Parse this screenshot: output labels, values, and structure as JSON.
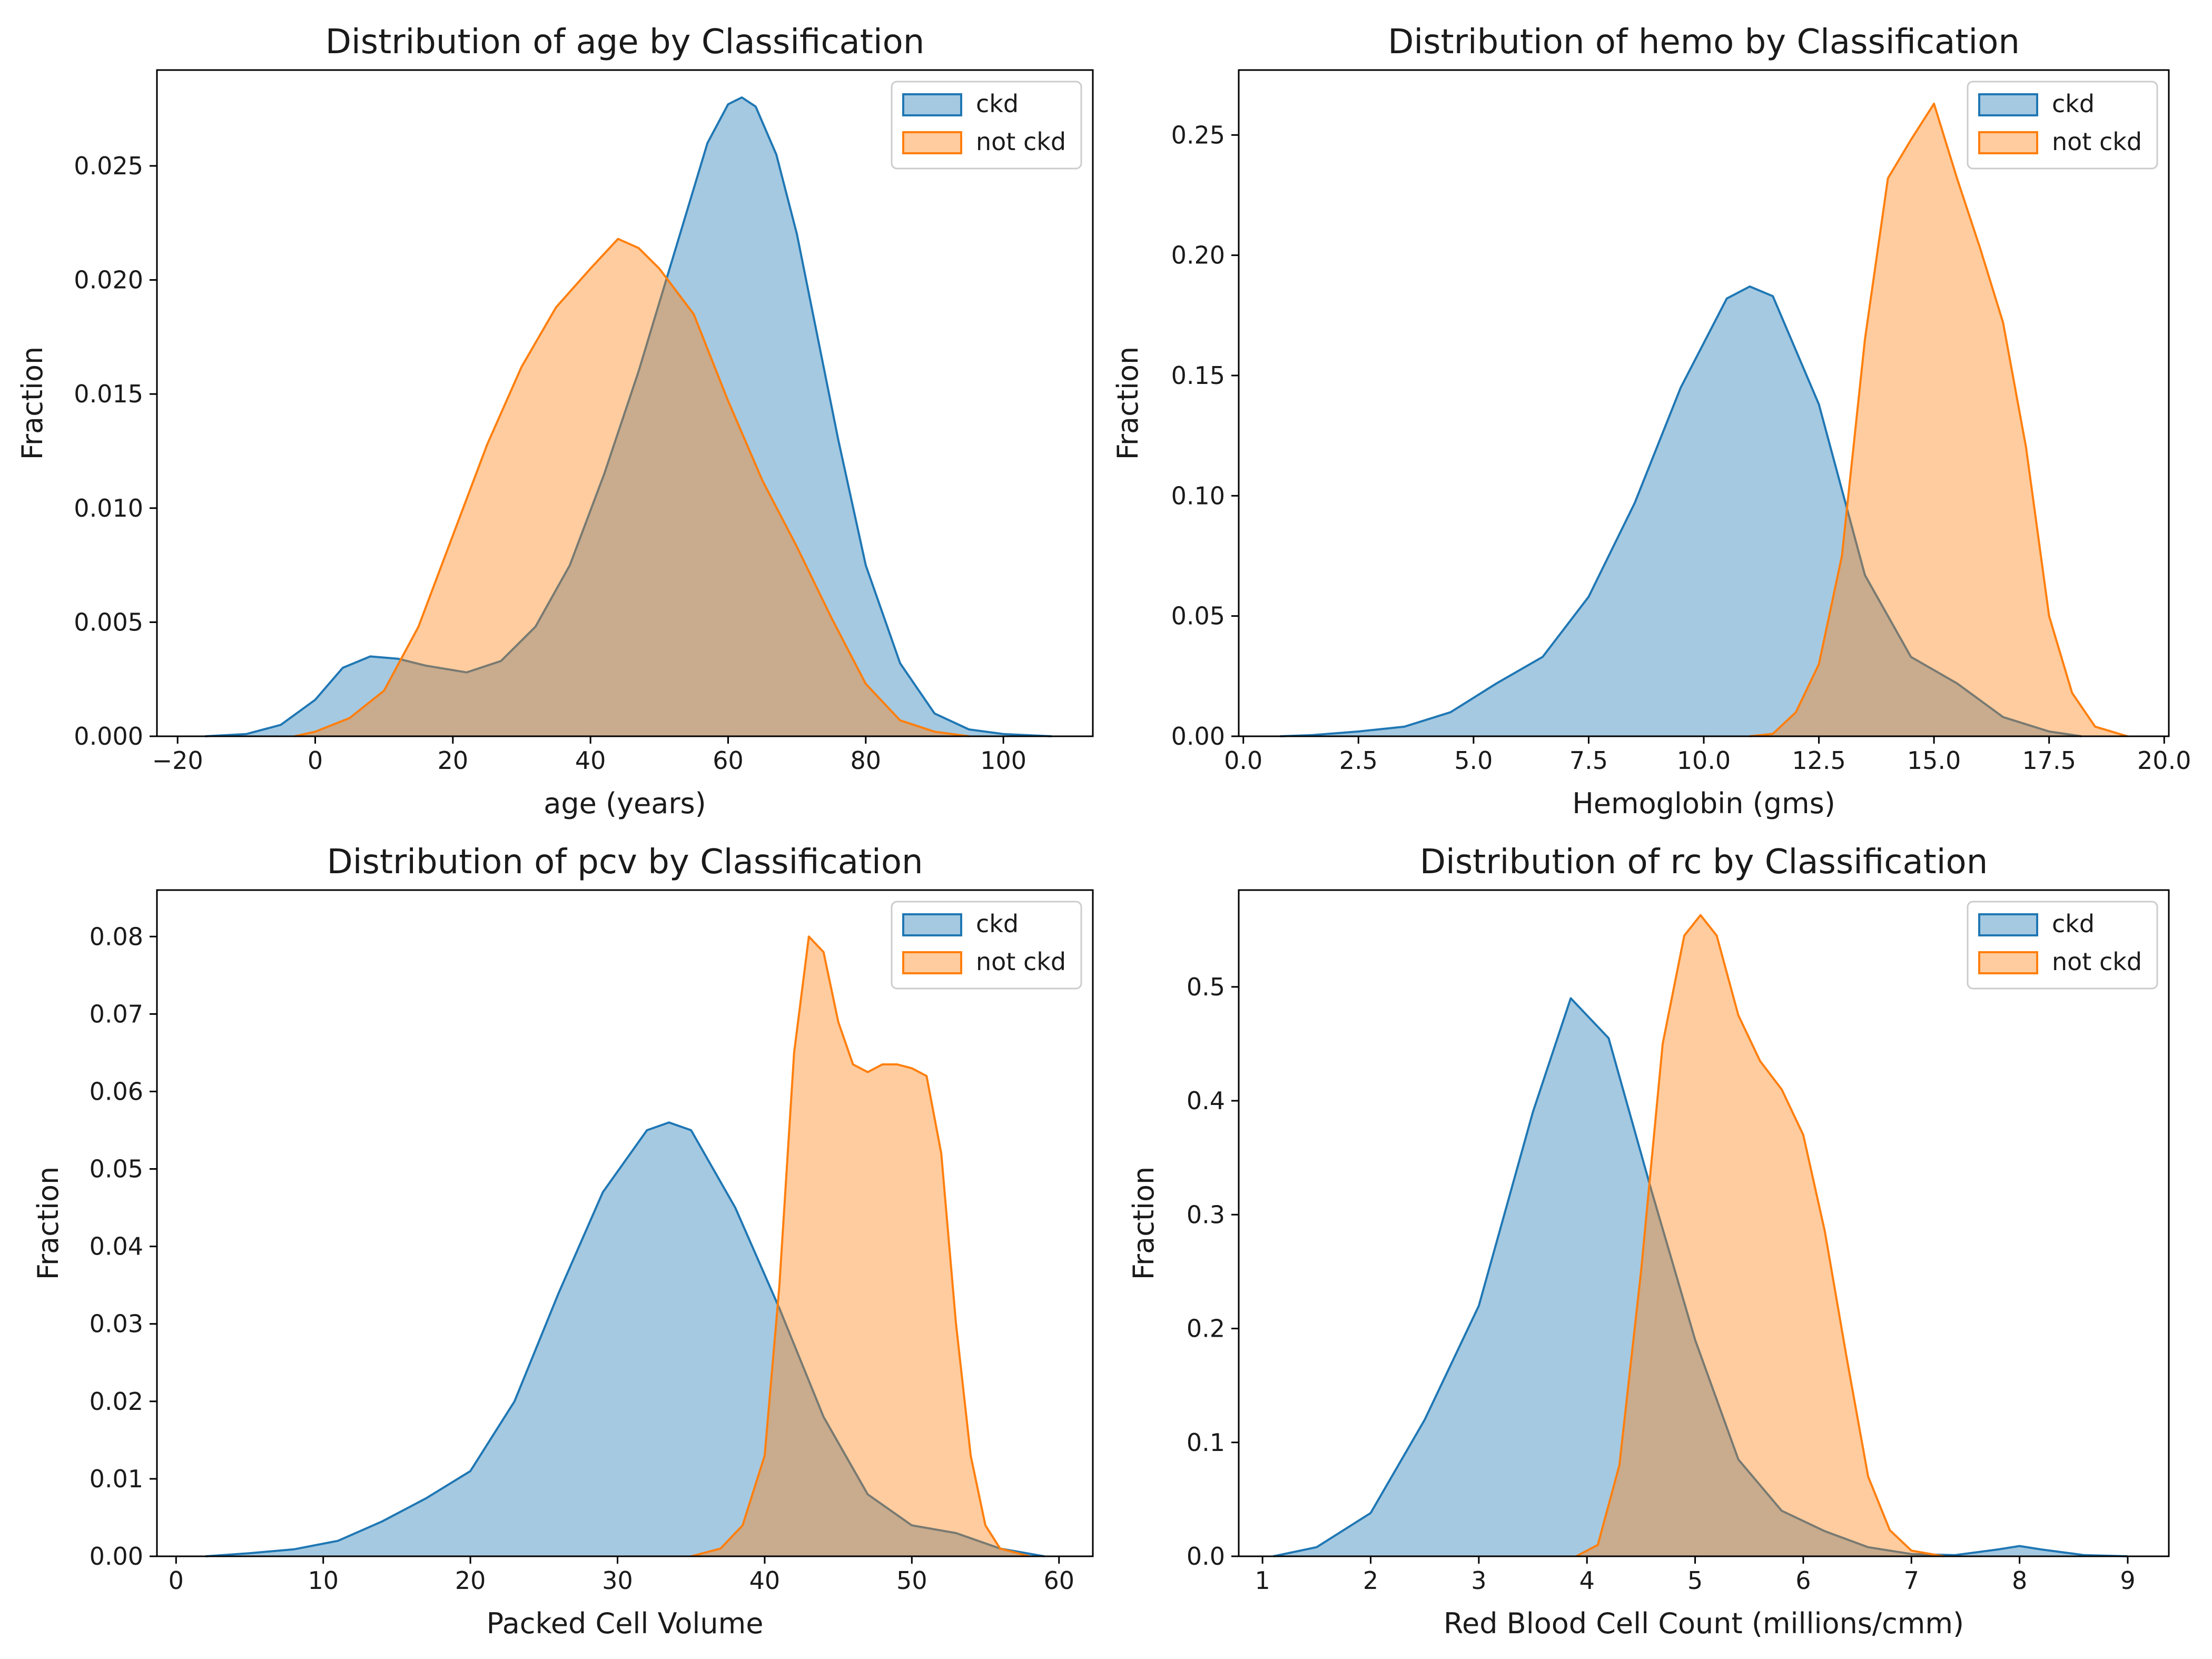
{
  "colors": {
    "ckd": "#1f77b4",
    "not_ckd": "#ff7f0e"
  },
  "chart_data": [
    {
      "type": "area",
      "title": "Distribution of age by Classification",
      "xlabel": "age (years)",
      "ylabel": "Fraction",
      "xlim": [
        -23,
        113
      ],
      "ylim": [
        0,
        0.0292
      ],
      "xticks": [
        -20,
        0,
        20,
        40,
        60,
        80,
        100
      ],
      "xtick_labels": [
        "−20",
        "0",
        "20",
        "40",
        "60",
        "80",
        "100"
      ],
      "yticks": [
        0,
        0.005,
        0.01,
        0.015,
        0.02,
        0.025
      ],
      "ytick_labels": [
        "0.000",
        "0.005",
        "0.010",
        "0.015",
        "0.020",
        "0.025"
      ],
      "legend": [
        "ckd",
        "not ckd"
      ],
      "legend_position": "top-right",
      "series": [
        {
          "name": "ckd",
          "x": [
            -16,
            -10,
            -5,
            0,
            4,
            8,
            12,
            16,
            22,
            27,
            32,
            37,
            42,
            47,
            52,
            57,
            60,
            62,
            64,
            67,
            70,
            73,
            76,
            80,
            85,
            90,
            95,
            100,
            107
          ],
          "y": [
            0,
            0.0001,
            0.0005,
            0.0016,
            0.003,
            0.0035,
            0.0034,
            0.0031,
            0.0028,
            0.0033,
            0.0048,
            0.0075,
            0.0115,
            0.016,
            0.021,
            0.026,
            0.0277,
            0.028,
            0.0276,
            0.0255,
            0.022,
            0.0175,
            0.013,
            0.0075,
            0.0032,
            0.001,
            0.0003,
            0.0001,
            0
          ]
        },
        {
          "name": "not ckd",
          "x": [
            -3,
            0,
            5,
            10,
            15,
            20,
            25,
            30,
            35,
            40,
            44,
            47,
            50,
            55,
            60,
            65,
            70,
            75,
            80,
            85,
            90,
            95
          ],
          "y": [
            0,
            0.0002,
            0.0008,
            0.002,
            0.0048,
            0.0088,
            0.0128,
            0.0162,
            0.0188,
            0.0205,
            0.0218,
            0.0214,
            0.0205,
            0.0185,
            0.0147,
            0.0112,
            0.0083,
            0.0052,
            0.0023,
            0.0007,
            0.0002,
            0
          ]
        }
      ]
    },
    {
      "type": "area",
      "title": "Distribution of hemo by Classification",
      "xlabel": "Hemoglobin (gms)",
      "ylabel": "Fraction",
      "xlim": [
        -0.1,
        20.1
      ],
      "ylim": [
        0,
        0.277
      ],
      "xticks": [
        0,
        2.5,
        5,
        7.5,
        10,
        12.5,
        15,
        17.5,
        20
      ],
      "xtick_labels": [
        "0.0",
        "2.5",
        "5.0",
        "7.5",
        "10.0",
        "12.5",
        "15.0",
        "17.5",
        "20.0"
      ],
      "yticks": [
        0,
        0.05,
        0.1,
        0.15,
        0.2,
        0.25
      ],
      "ytick_labels": [
        "0.00",
        "0.05",
        "0.10",
        "0.15",
        "0.20",
        "0.25"
      ],
      "legend": [
        "ckd",
        "not ckd"
      ],
      "legend_position": "top-right",
      "series": [
        {
          "name": "ckd",
          "x": [
            0.8,
            1.5,
            2.5,
            3.5,
            4.5,
            5.5,
            6.5,
            7.5,
            8.5,
            9.5,
            10.5,
            11,
            11.5,
            12.5,
            13.5,
            14.5,
            15.5,
            16.5,
            17.5,
            18.2
          ],
          "y": [
            0,
            0.0005,
            0.002,
            0.004,
            0.01,
            0.022,
            0.033,
            0.058,
            0.097,
            0.145,
            0.182,
            0.187,
            0.183,
            0.138,
            0.067,
            0.033,
            0.022,
            0.008,
            0.002,
            0
          ]
        },
        {
          "name": "not ckd",
          "x": [
            11,
            11.5,
            12,
            12.5,
            13,
            13.5,
            14,
            14.5,
            15,
            15.5,
            16,
            16.5,
            17,
            17.5,
            18,
            18.5,
            19.2
          ],
          "y": [
            0,
            0.001,
            0.01,
            0.03,
            0.075,
            0.165,
            0.232,
            0.248,
            0.263,
            0.232,
            0.203,
            0.172,
            0.12,
            0.05,
            0.018,
            0.004,
            0
          ]
        }
      ]
    },
    {
      "type": "area",
      "title": "Distribution of pcv by Classification",
      "xlabel": "Packed Cell Volume",
      "ylabel": "Fraction",
      "xlim": [
        -1.3,
        62.3
      ],
      "ylim": [
        0,
        0.086
      ],
      "xticks": [
        0,
        10,
        20,
        30,
        40,
        50,
        60
      ],
      "xtick_labels": [
        "0",
        "10",
        "20",
        "30",
        "40",
        "50",
        "60"
      ],
      "yticks": [
        0,
        0.01,
        0.02,
        0.03,
        0.04,
        0.05,
        0.06,
        0.07,
        0.08
      ],
      "ytick_labels": [
        "0.00",
        "0.01",
        "0.02",
        "0.03",
        "0.04",
        "0.05",
        "0.06",
        "0.07",
        "0.08"
      ],
      "legend": [
        "ckd",
        "not ckd"
      ],
      "legend_position": "top-right",
      "series": [
        {
          "name": "ckd",
          "x": [
            2,
            5,
            8,
            11,
            14,
            17,
            20,
            23,
            26,
            29,
            32,
            33.5,
            35,
            38,
            41,
            44,
            47,
            50,
            53,
            56,
            59
          ],
          "y": [
            0,
            0.0004,
            0.0009,
            0.002,
            0.0045,
            0.0075,
            0.011,
            0.02,
            0.034,
            0.047,
            0.055,
            0.056,
            0.055,
            0.045,
            0.032,
            0.018,
            0.008,
            0.004,
            0.003,
            0.001,
            0
          ]
        },
        {
          "name": "not ckd",
          "x": [
            35,
            37,
            38.5,
            40,
            41,
            42,
            43,
            44,
            45,
            46,
            47,
            48,
            49,
            50,
            51,
            52,
            53,
            54,
            55,
            56,
            58
          ],
          "y": [
            0,
            0.001,
            0.004,
            0.013,
            0.035,
            0.065,
            0.08,
            0.078,
            0.069,
            0.0635,
            0.0625,
            0.0635,
            0.0635,
            0.063,
            0.062,
            0.052,
            0.03,
            0.013,
            0.004,
            0.001,
            0
          ]
        }
      ]
    },
    {
      "type": "area",
      "title": "Distribution of rc by Classification",
      "xlabel": "Red Blood Cell Count (millions/cmm)",
      "ylabel": "Fraction",
      "xlim": [
        0.78,
        9.38
      ],
      "ylim": [
        0,
        0.585
      ],
      "xticks": [
        1,
        2,
        3,
        4,
        5,
        6,
        7,
        8,
        9
      ],
      "xtick_labels": [
        "1",
        "2",
        "3",
        "4",
        "5",
        "6",
        "7",
        "8",
        "9"
      ],
      "yticks": [
        0,
        0.1,
        0.2,
        0.3,
        0.4,
        0.5
      ],
      "ytick_labels": [
        "0.0",
        "0.1",
        "0.2",
        "0.3",
        "0.4",
        "0.5"
      ],
      "legend": [
        "ckd",
        "not ckd"
      ],
      "legend_position": "top-right",
      "series": [
        {
          "name": "ckd",
          "x": [
            1.1,
            1.5,
            2,
            2.5,
            3,
            3.5,
            3.85,
            4.2,
            4.6,
            5,
            5.4,
            5.8,
            6.2,
            6.6,
            7,
            7.4,
            7.8,
            8,
            8.2,
            8.6,
            9
          ],
          "y": [
            0,
            0.008,
            0.038,
            0.12,
            0.22,
            0.39,
            0.49,
            0.455,
            0.32,
            0.19,
            0.085,
            0.04,
            0.022,
            0.008,
            0.002,
            0.001,
            0.006,
            0.009,
            0.006,
            0.001,
            0
          ]
        },
        {
          "name": "not ckd",
          "x": [
            3.9,
            4.1,
            4.3,
            4.5,
            4.7,
            4.9,
            5.05,
            5.2,
            5.4,
            5.6,
            5.8,
            6,
            6.2,
            6.4,
            6.6,
            6.8,
            7,
            7.3
          ],
          "y": [
            0,
            0.01,
            0.08,
            0.25,
            0.45,
            0.545,
            0.563,
            0.545,
            0.475,
            0.435,
            0.41,
            0.37,
            0.285,
            0.175,
            0.07,
            0.023,
            0.005,
            0
          ]
        }
      ]
    }
  ]
}
